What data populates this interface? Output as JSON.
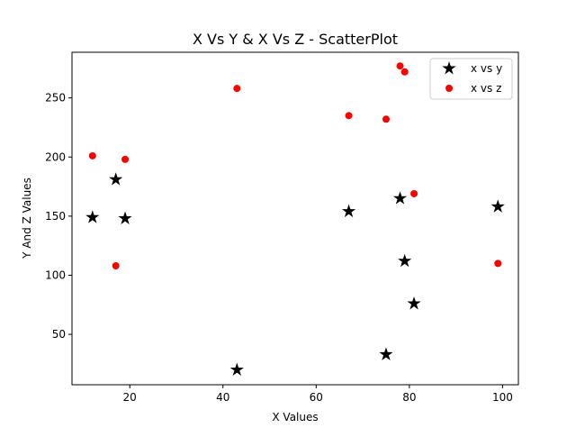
{
  "chart_data": {
    "type": "scatter",
    "title": "X Vs Y & X Vs Z - ScatterPlot",
    "xlabel": "X Values",
    "ylabel": "Y And Z Values",
    "xlim": [
      7.6,
      103.4
    ],
    "ylim": [
      7.4,
      288.6
    ],
    "xticks": [
      20,
      40,
      60,
      80,
      100
    ],
    "yticks": [
      50,
      100,
      150,
      200,
      250
    ],
    "grid": false,
    "legend_position": "top-right",
    "series": [
      {
        "name": "x vs y",
        "marker": "star",
        "color": "#000000",
        "points": [
          {
            "x": 12,
            "y": 149
          },
          {
            "x": 17,
            "y": 181
          },
          {
            "x": 19,
            "y": 148
          },
          {
            "x": 43,
            "y": 20
          },
          {
            "x": 67,
            "y": 154
          },
          {
            "x": 75,
            "y": 33
          },
          {
            "x": 78,
            "y": 165
          },
          {
            "x": 79,
            "y": 112
          },
          {
            "x": 81,
            "y": 76
          },
          {
            "x": 99,
            "y": 158
          }
        ]
      },
      {
        "name": "x vs z",
        "marker": "circle",
        "color": "#ff0000",
        "points": [
          {
            "x": 12,
            "y": 201
          },
          {
            "x": 17,
            "y": 108
          },
          {
            "x": 19,
            "y": 198
          },
          {
            "x": 43,
            "y": 258
          },
          {
            "x": 67,
            "y": 235
          },
          {
            "x": 75,
            "y": 232
          },
          {
            "x": 78,
            "y": 277
          },
          {
            "x": 79,
            "y": 272
          },
          {
            "x": 81,
            "y": 169
          },
          {
            "x": 99,
            "y": 110
          }
        ]
      }
    ]
  }
}
